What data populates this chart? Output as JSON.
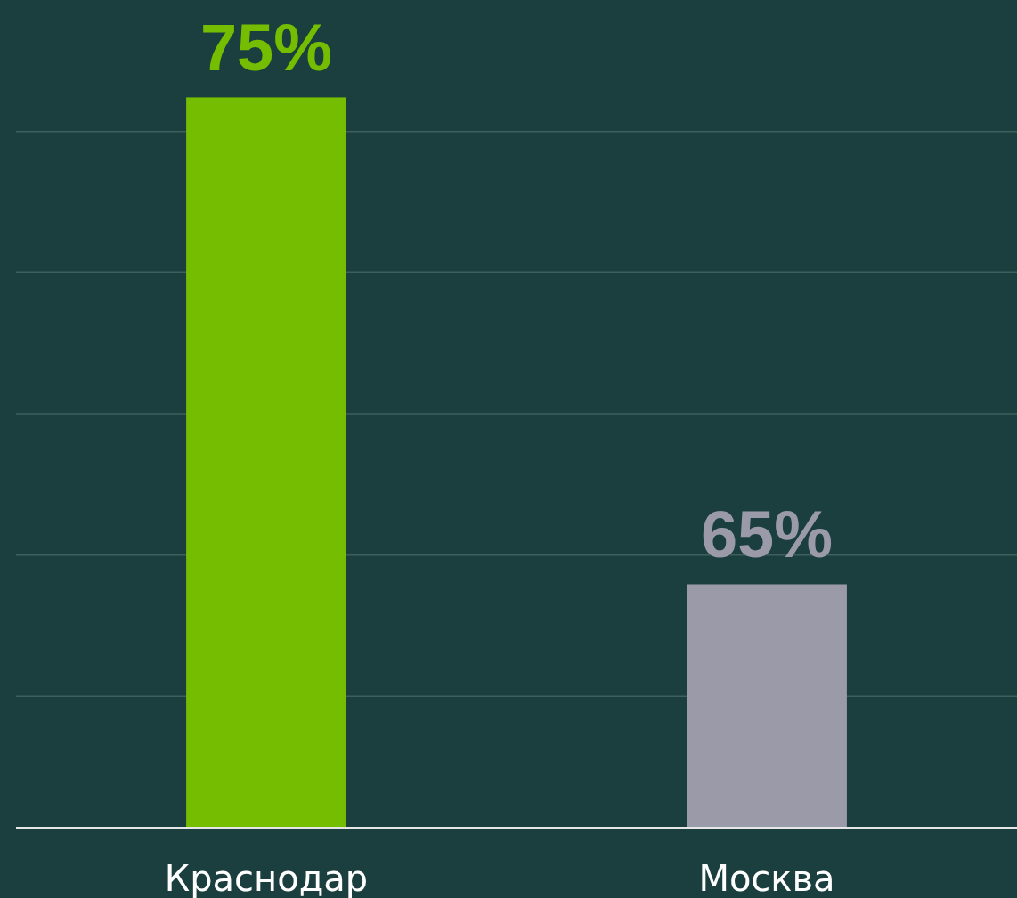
{
  "chart_data": {
    "type": "bar",
    "categories": [
      "Краснодар",
      "Москва"
    ],
    "values": [
      75,
      65
    ],
    "colors": [
      "#74bd00",
      "#9b9aa8"
    ],
    "value_labels": [
      "75%",
      "65%"
    ],
    "ylim": [
      60,
      77
    ],
    "yticks": [
      {
        "value": 62.7,
        "label": null
      },
      {
        "value": 65.6,
        "label": null
      },
      {
        "value": 68.5,
        "label": null
      },
      {
        "value": 71.4,
        "label": null
      },
      {
        "value": 74.3,
        "label": null
      }
    ],
    "grid": "y",
    "tick_labels": "x"
  }
}
